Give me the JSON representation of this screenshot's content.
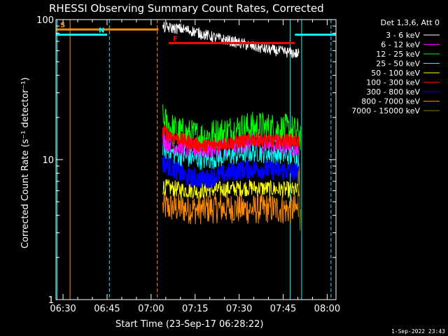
{
  "chart_data": {
    "type": "line",
    "title": "RHESSI Observing Summary Count Rates, Corrected",
    "xlabel": "Start Time (23-Sep-17 06:28:22)",
    "ylabel": "Corrected Count Rate (s⁻¹ detector⁻¹)",
    "yscale": "log",
    "ylim": [
      1,
      100
    ],
    "xlim_minutes": [
      -2.4,
      93.0
    ],
    "x_ticks": [
      {
        "label": "06:30",
        "minutes": 0
      },
      {
        "label": "06:45",
        "minutes": 15
      },
      {
        "label": "07:00",
        "minutes": 30
      },
      {
        "label": "07:15",
        "minutes": 45
      },
      {
        "label": "07:30",
        "minutes": 60
      },
      {
        "label": "07:45",
        "minutes": 75
      },
      {
        "label": "08:00",
        "minutes": 90
      }
    ],
    "y_tick_labels": [
      {
        "label": "1",
        "value": 1
      },
      {
        "label": "10",
        "value": 10
      },
      {
        "label": "100",
        "value": 100
      }
    ],
    "legend_header": "Det 1,3,6, Att 0",
    "series": [
      {
        "name": "3 - 6 keV",
        "color": "#ffffff",
        "x_start": 34,
        "x_end": 80.5,
        "x": [
          34,
          40,
          45,
          50,
          55,
          60,
          65,
          70,
          75,
          80
        ],
        "values": [
          88,
          86,
          82,
          76,
          72,
          68,
          64,
          61,
          59,
          57
        ]
      },
      {
        "name": "6 - 12 keV",
        "color": "#ff00ff",
        "x_start": 34,
        "x_end": 80.5,
        "x": [
          34,
          38,
          42,
          48,
          54,
          60,
          66,
          72,
          78,
          80
        ],
        "values": [
          14,
          12.6,
          12,
          11.8,
          12.2,
          12.8,
          13.2,
          12.8,
          12.4,
          12
        ]
      },
      {
        "name": "12 - 25 keV",
        "color": "#00ff00",
        "x_start": 34,
        "x_end": 81,
        "x": [
          34,
          38,
          42,
          48,
          54,
          60,
          66,
          72,
          78,
          80.5
        ],
        "values": [
          19,
          16,
          15,
          14.5,
          15.5,
          16.5,
          17,
          16.5,
          16,
          15
        ]
      },
      {
        "name": "25 - 50 keV",
        "color": "#00ffff",
        "x_start": 34,
        "x_end": 80.5,
        "x": [
          34,
          38,
          42,
          48,
          54,
          60,
          66,
          72,
          78,
          80
        ],
        "values": [
          12,
          11,
          10.5,
          10,
          10.5,
          11,
          11.5,
          11,
          10.8,
          10.5
        ]
      },
      {
        "name": "50 - 100 keV",
        "color": "#ffff00",
        "x_start": 34,
        "x_end": 80.5,
        "x": [
          34,
          40,
          46,
          52,
          58,
          64,
          70,
          76,
          80
        ],
        "values": [
          6.4,
          6.1,
          6.0,
          6.1,
          6.2,
          6.3,
          6.2,
          6.1,
          6.0
        ]
      },
      {
        "name": "100 - 300 keV",
        "color": "#ff0000",
        "x_start": 34,
        "x_end": 80.5,
        "x": [
          34,
          38,
          42,
          48,
          54,
          60,
          66,
          72,
          78,
          80
        ],
        "values": [
          16,
          14.5,
          13.5,
          12.5,
          13,
          13.5,
          14,
          13.5,
          13.8,
          13.5
        ]
      },
      {
        "name": "300 - 800 keV",
        "color": "#0000ff",
        "x_start": 34,
        "x_end": 80.5,
        "x": [
          34,
          38,
          42,
          48,
          54,
          60,
          66,
          72,
          78,
          80
        ],
        "values": [
          9.5,
          8.5,
          7.5,
          7.2,
          7.8,
          8.4,
          8.6,
          8.4,
          8.2,
          8
        ]
      },
      {
        "name": "800 - 7000 keV",
        "color": "#ff8c00",
        "x_start": 34,
        "x_end": 80.5,
        "x": [
          34,
          40,
          46,
          52,
          58,
          64,
          70,
          76,
          80
        ],
        "values": [
          4.6,
          4.5,
          4.4,
          4.5,
          4.5,
          4.4,
          4.5,
          4.4,
          4.4
        ]
      },
      {
        "name": "7000 - 15000 keV",
        "color": "#808000",
        "x_start": 80,
        "x_end": 81,
        "x": [
          80,
          80.5,
          81
        ],
        "values": [
          5,
          6,
          5.5
        ]
      }
    ],
    "flags": [
      {
        "label": "S",
        "color": "#ff8c00",
        "x_start": -2.4,
        "x_end": 32.5,
        "y": 85
      },
      {
        "label": "N",
        "color": "#00ffff",
        "x_start": -2.4,
        "x_end": 15,
        "y": 78
      },
      {
        "label": "",
        "color": "#00ffff",
        "x_start": 79,
        "x_end": 93,
        "y": 78
      },
      {
        "label": "F",
        "color": "#ff0000",
        "x_start": 36,
        "x_end": 79,
        "y": 68
      }
    ],
    "vertical_markers": [
      {
        "x": 2.4,
        "color": "#ff8c00",
        "style": "solid"
      },
      {
        "x": 32.1,
        "color": "#ff8c00",
        "style": "dashed"
      },
      {
        "x": 15.8,
        "color": "#00ffff",
        "style": "dashed"
      },
      {
        "x": 77.4,
        "color": "#00ffff",
        "style": "solid"
      },
      {
        "x": 81.3,
        "color": "#00ffff",
        "style": "solid"
      },
      {
        "x": 91.3,
        "color": "#00ffff",
        "style": "dashed"
      },
      {
        "x": -2.0,
        "color": "#00ffff",
        "style": "solid"
      }
    ],
    "footer_timestamp": "1-Sep-2022 23:43"
  }
}
